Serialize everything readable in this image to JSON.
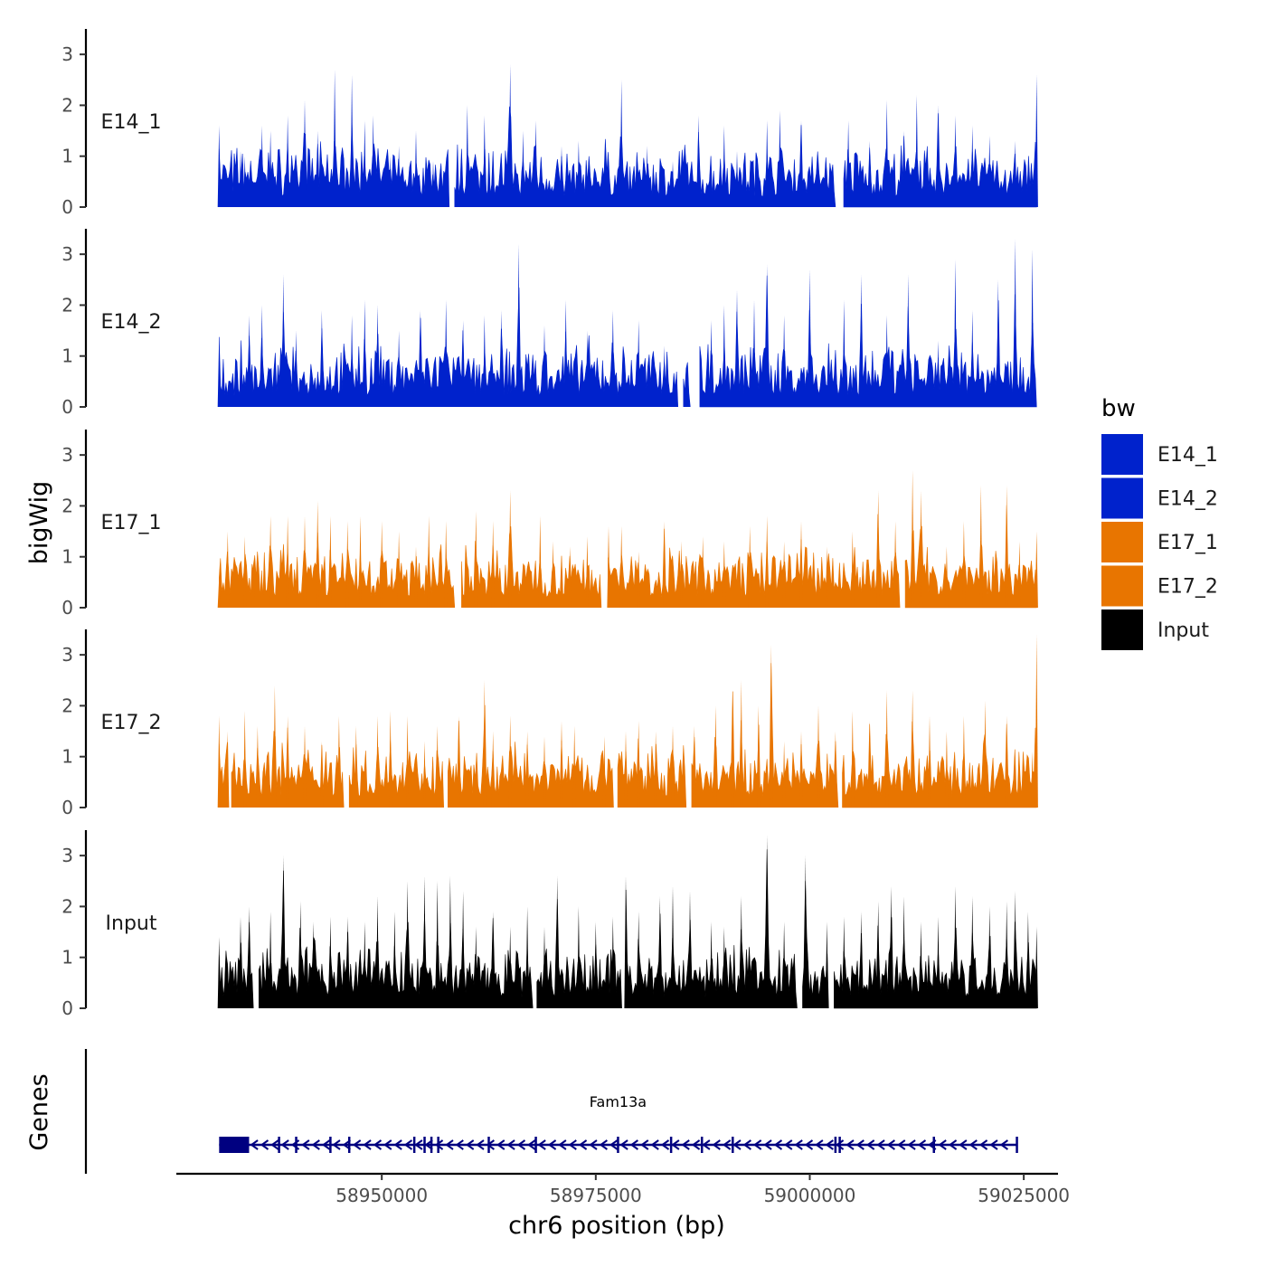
{
  "chart_data": {
    "type": "area",
    "title": "",
    "xlabel": "chr6 position (bp)",
    "ylabel": "bigWig",
    "genes_label": "Genes",
    "x_range": [
      58926000,
      59029000
    ],
    "x_ticks": [
      58950000,
      58975000,
      59000000,
      59025000
    ],
    "x_tick_labels": [
      "58950000",
      "58975000",
      "59000000",
      "59025000"
    ],
    "y_range": [
      0,
      3.5
    ],
    "y_ticks": [
      0,
      1,
      2,
      3
    ],
    "y_tick_labels": [
      "0",
      "1",
      "2",
      "3"
    ],
    "data_x_start": 58931000,
    "data_x_end": 59026500,
    "legend": {
      "title": "bw",
      "entries": [
        {
          "label": "E14_1",
          "color": "#0022CC"
        },
        {
          "label": "E14_2",
          "color": "#0022CC"
        },
        {
          "label": "E17_1",
          "color": "#E87500"
        },
        {
          "label": "E17_2",
          "color": "#E87500"
        },
        {
          "label": "Input",
          "color": "#000000"
        }
      ]
    },
    "series": [
      {
        "name": "E14_1",
        "color": "#0022CC",
        "peaks": [
          [
            58931000,
            1.6
          ],
          [
            58933500,
            1.1
          ],
          [
            58934000,
            1.0
          ],
          [
            58936000,
            1.6
          ],
          [
            58937000,
            1.5
          ],
          [
            58939000,
            1.8
          ],
          [
            58941000,
            2.1
          ],
          [
            58942500,
            1.5
          ],
          [
            58944500,
            2.7
          ],
          [
            58946500,
            2.6
          ],
          [
            58948000,
            1.7
          ],
          [
            58949000,
            1.8
          ],
          [
            58951000,
            1.0
          ],
          [
            58952000,
            1.2
          ],
          [
            58954000,
            1.5
          ],
          [
            58956000,
            0.9
          ],
          [
            58960000,
            2.0
          ],
          [
            58962000,
            1.8
          ],
          [
            58965000,
            2.8
          ],
          [
            58966500,
            1.5
          ],
          [
            58968000,
            1.7
          ],
          [
            58971000,
            1.2
          ],
          [
            58973000,
            1.3
          ],
          [
            58976000,
            0.8
          ],
          [
            58978000,
            2.5
          ],
          [
            58981000,
            1.2
          ],
          [
            58984000,
            0.9
          ],
          [
            58987000,
            1.8
          ],
          [
            58990000,
            1.6
          ],
          [
            58991500,
            1.1
          ],
          [
            58995000,
            1.7
          ],
          [
            58996500,
            1.9
          ],
          [
            58999000,
            1.7
          ],
          [
            59002000,
            0.8
          ],
          [
            59004500,
            1.7
          ],
          [
            59007000,
            1.3
          ],
          [
            59009000,
            2.1
          ],
          [
            59011000,
            1.5
          ],
          [
            59012500,
            2.2
          ],
          [
            59015000,
            2.0
          ],
          [
            59017000,
            1.8
          ],
          [
            59019000,
            1.6
          ],
          [
            59021000,
            1.4
          ],
          [
            59024000,
            1.3
          ],
          [
            59026500,
            2.6
          ]
        ],
        "gaps": [
          [
            58957800,
            58958400
          ],
          [
            59003000,
            59003800
          ]
        ]
      },
      {
        "name": "E14_2",
        "color": "#0022CC",
        "peaks": [
          [
            58931000,
            1.4
          ],
          [
            58934500,
            1.8
          ],
          [
            58936000,
            2.0
          ],
          [
            58938500,
            2.6
          ],
          [
            58940000,
            1.5
          ],
          [
            58943000,
            1.9
          ],
          [
            58946500,
            1.8
          ],
          [
            58948000,
            2.1
          ],
          [
            58949500,
            2.0
          ],
          [
            58952000,
            1.5
          ],
          [
            58954500,
            1.9
          ],
          [
            58957500,
            2.1
          ],
          [
            58959500,
            1.7
          ],
          [
            58962000,
            1.8
          ],
          [
            58964000,
            1.9
          ],
          [
            58966000,
            3.2
          ],
          [
            58969000,
            1.6
          ],
          [
            58971500,
            2.1
          ],
          [
            58974000,
            1.5
          ],
          [
            58977000,
            1.9
          ],
          [
            58980000,
            1.7
          ],
          [
            58983000,
            1.2
          ],
          [
            58988500,
            1.7
          ],
          [
            58990000,
            2.0
          ],
          [
            58991500,
            2.3
          ],
          [
            58993500,
            2.1
          ],
          [
            58995000,
            2.8
          ],
          [
            58997000,
            1.8
          ],
          [
            59000000,
            2.7
          ],
          [
            59004000,
            2.1
          ],
          [
            59006000,
            2.6
          ],
          [
            59009000,
            1.8
          ],
          [
            59011500,
            2.6
          ],
          [
            59015000,
            1.3
          ],
          [
            59017000,
            2.9
          ],
          [
            59019000,
            1.9
          ],
          [
            59022000,
            2.5
          ],
          [
            59024000,
            3.3
          ],
          [
            59026000,
            3.1
          ]
        ],
        "gaps": [
          [
            58984500,
            58985200
          ],
          [
            58986000,
            58987000
          ]
        ]
      },
      {
        "name": "E17_1",
        "color": "#E87500",
        "peaks": [
          [
            58931000,
            0.6
          ],
          [
            58932000,
            1.5
          ],
          [
            58934000,
            1.4
          ],
          [
            58935000,
            1.0
          ],
          [
            58937000,
            1.8
          ],
          [
            58939000,
            1.8
          ],
          [
            58941000,
            1.8
          ],
          [
            58942500,
            2.1
          ],
          [
            58944000,
            1.8
          ],
          [
            58946000,
            1.7
          ],
          [
            58947500,
            1.8
          ],
          [
            58950000,
            1.7
          ],
          [
            58952000,
            1.5
          ],
          [
            58954000,
            1.2
          ],
          [
            58955500,
            1.8
          ],
          [
            58957500,
            1.7
          ],
          [
            58961000,
            1.9
          ],
          [
            58963000,
            1.7
          ],
          [
            58965000,
            2.3
          ],
          [
            58968500,
            1.8
          ],
          [
            58970000,
            1.3
          ],
          [
            58972000,
            1.2
          ],
          [
            58974000,
            1.4
          ],
          [
            58976500,
            1.6
          ],
          [
            58978000,
            1.6
          ],
          [
            58980000,
            1.1
          ],
          [
            58983000,
            1.7
          ],
          [
            58985000,
            1.3
          ],
          [
            58987500,
            1.4
          ],
          [
            58990000,
            1.3
          ],
          [
            58993000,
            1.6
          ],
          [
            58995000,
            1.8
          ],
          [
            58997000,
            1.3
          ],
          [
            58999000,
            1.7
          ],
          [
            59002000,
            1.2
          ],
          [
            59005000,
            1.5
          ],
          [
            59008000,
            2.3
          ],
          [
            59010000,
            1.7
          ],
          [
            59012000,
            2.7
          ],
          [
            59013000,
            2.3
          ],
          [
            59016000,
            1.2
          ],
          [
            59018000,
            1.7
          ],
          [
            59020000,
            2.4
          ],
          [
            59023000,
            2.4
          ],
          [
            59024500,
            1.3
          ],
          [
            59026500,
            1.5
          ]
        ],
        "gaps": [
          [
            58958500,
            58959200
          ],
          [
            58975500,
            58976300
          ],
          [
            59010500,
            59011000
          ]
        ]
      },
      {
        "name": "E17_2",
        "color": "#E87500",
        "peaks": [
          [
            58931000,
            1.8
          ],
          [
            58932000,
            1.5
          ],
          [
            58934000,
            1.9
          ],
          [
            58935500,
            1.6
          ],
          [
            58937500,
            2.4
          ],
          [
            58939000,
            1.8
          ],
          [
            58941000,
            1.6
          ],
          [
            58943000,
            1.3
          ],
          [
            58945000,
            1.8
          ],
          [
            58947000,
            1.6
          ],
          [
            58949500,
            1.8
          ],
          [
            58951000,
            1.9
          ],
          [
            58953000,
            1.8
          ],
          [
            58955000,
            1.3
          ],
          [
            58956500,
            1.6
          ],
          [
            58959000,
            1.8
          ],
          [
            58962000,
            2.5
          ],
          [
            58963000,
            1.5
          ],
          [
            58965000,
            1.8
          ],
          [
            58967000,
            1.5
          ],
          [
            58969000,
            1.4
          ],
          [
            58971000,
            1.7
          ],
          [
            58972500,
            1.6
          ],
          [
            58976000,
            1.4
          ],
          [
            58978500,
            1.5
          ],
          [
            58980000,
            1.7
          ],
          [
            58982000,
            1.5
          ],
          [
            58984000,
            1.6
          ],
          [
            58986500,
            1.6
          ],
          [
            58989000,
            2.0
          ],
          [
            58991000,
            2.3
          ],
          [
            58992000,
            2.5
          ],
          [
            58994000,
            2.0
          ],
          [
            58995500,
            3.2
          ],
          [
            58997000,
            1.3
          ],
          [
            58999000,
            1.5
          ],
          [
            59001000,
            2.0
          ],
          [
            59003000,
            1.5
          ],
          [
            59005000,
            1.9
          ],
          [
            59007000,
            1.7
          ],
          [
            59009000,
            2.3
          ],
          [
            59012000,
            2.3
          ],
          [
            59014000,
            1.8
          ],
          [
            59016000,
            1.5
          ],
          [
            59018000,
            1.8
          ],
          [
            59020500,
            2.1
          ],
          [
            59023000,
            1.8
          ],
          [
            59026000,
            1.1
          ],
          [
            59026500,
            3.4
          ]
        ],
        "gaps": [
          [
            58932000,
            58932400
          ],
          [
            58945500,
            58946100
          ],
          [
            58957200,
            58957700
          ],
          [
            58977000,
            58977500
          ],
          [
            58985500,
            58986100
          ],
          [
            59003200,
            59003700
          ]
        ]
      },
      {
        "name": "Input",
        "color": "#000000",
        "peaks": [
          [
            58931000,
            1.4
          ],
          [
            58932000,
            1.0
          ],
          [
            58933500,
            1.8
          ],
          [
            58934500,
            2.0
          ],
          [
            58937000,
            1.9
          ],
          [
            58938500,
            3.0
          ],
          [
            58940500,
            2.1
          ],
          [
            58942000,
            1.7
          ],
          [
            58944000,
            1.8
          ],
          [
            58946000,
            1.8
          ],
          [
            58948000,
            1.7
          ],
          [
            58949500,
            2.2
          ],
          [
            58951500,
            1.9
          ],
          [
            58953000,
            2.5
          ],
          [
            58955000,
            2.6
          ],
          [
            58956500,
            2.5
          ],
          [
            58958000,
            2.6
          ],
          [
            58959500,
            2.3
          ],
          [
            58961000,
            1.6
          ],
          [
            58963000,
            1.9
          ],
          [
            58965000,
            1.6
          ],
          [
            58967000,
            2.0
          ],
          [
            58969000,
            1.6
          ],
          [
            58970500,
            2.6
          ],
          [
            58973000,
            2.0
          ],
          [
            58975000,
            1.7
          ],
          [
            58977000,
            1.8
          ],
          [
            58978500,
            2.6
          ],
          [
            58980000,
            1.9
          ],
          [
            58982500,
            2.2
          ],
          [
            58984000,
            2.4
          ],
          [
            58986000,
            2.3
          ],
          [
            58988500,
            1.7
          ],
          [
            58990000,
            1.6
          ],
          [
            58992000,
            2.2
          ],
          [
            58995000,
            3.4
          ],
          [
            58997000,
            1.7
          ],
          [
            58999500,
            3.0
          ],
          [
            59002000,
            1.7
          ],
          [
            59004000,
            1.8
          ],
          [
            59006000,
            1.9
          ],
          [
            59008000,
            2.1
          ],
          [
            59009500,
            2.4
          ],
          [
            59011000,
            2.2
          ],
          [
            59013000,
            1.7
          ],
          [
            59015000,
            1.8
          ],
          [
            59017000,
            2.4
          ],
          [
            59019000,
            2.2
          ],
          [
            59021000,
            2.0
          ],
          [
            59023000,
            2.1
          ],
          [
            59024000,
            2.3
          ],
          [
            59025500,
            1.9
          ],
          [
            59026500,
            1.6
          ]
        ],
        "gaps": [
          [
            58935000,
            58935500
          ],
          [
            58967500,
            58968000
          ],
          [
            58978000,
            58978500
          ],
          [
            58998500,
            58999000
          ],
          [
            59002200,
            59002700
          ]
        ]
      }
    ],
    "gene": {
      "name": "Fam13a",
      "color": "#000080",
      "start": 58931000,
      "end": 59024200,
      "strand": "-",
      "thick_end": 58934500,
      "exons": [
        58938000,
        58940000,
        58944000,
        58946200,
        58953800,
        58955000,
        58955800,
        58956600,
        58962500,
        58968000,
        58977600,
        58983800,
        58987400,
        58991000,
        59003000,
        59003500,
        59014500,
        59024200
      ]
    }
  }
}
